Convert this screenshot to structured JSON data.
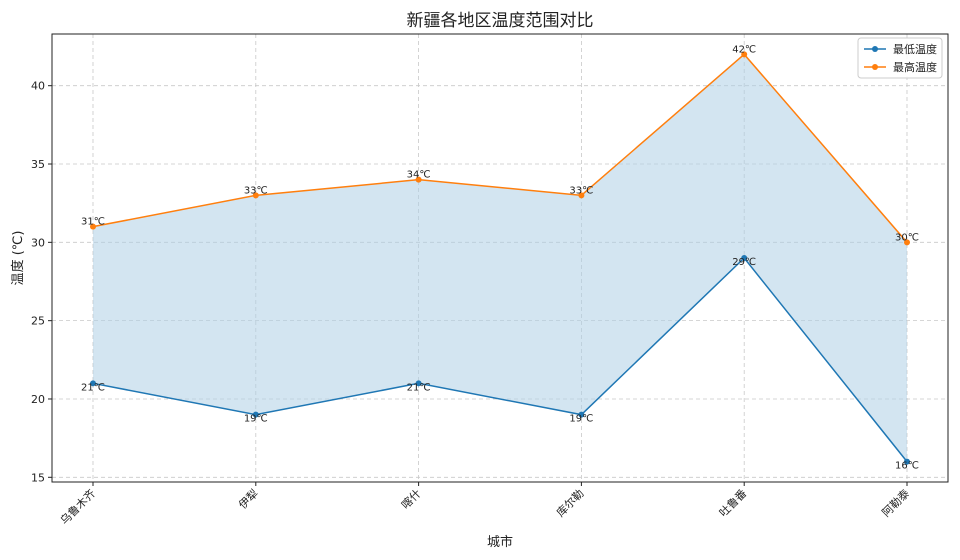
{
  "chart_data": {
    "type": "line",
    "title": "新疆各地区温度范围对比",
    "xlabel": "城市",
    "ylabel": "温度 (℃)",
    "categories": [
      "乌鲁木齐",
      "伊犁",
      "喀什",
      "库尔勒",
      "吐鲁番",
      "阿勒泰"
    ],
    "series": [
      {
        "name": "最低温度",
        "values": [
          21,
          19,
          21,
          19,
          29,
          16
        ],
        "color": "#1f77b4"
      },
      {
        "name": "最高温度",
        "values": [
          31,
          33,
          34,
          33,
          42,
          30
        ],
        "color": "#ff7f0e"
      }
    ],
    "data_labels": {
      "low": [
        "21℃",
        "19℃",
        "21℃",
        "19℃",
        "29℃",
        "16℃"
      ],
      "high": [
        "31℃",
        "33℃",
        "34℃",
        "33℃",
        "42℃",
        "30℃"
      ]
    },
    "fill_between": {
      "color": "#aecfe6",
      "opacity": 0.55
    },
    "ylim": [
      14.7,
      43.3
    ],
    "yticks": [
      15,
      20,
      25,
      30,
      35,
      40
    ],
    "grid": true,
    "legend_position": "top-right"
  }
}
